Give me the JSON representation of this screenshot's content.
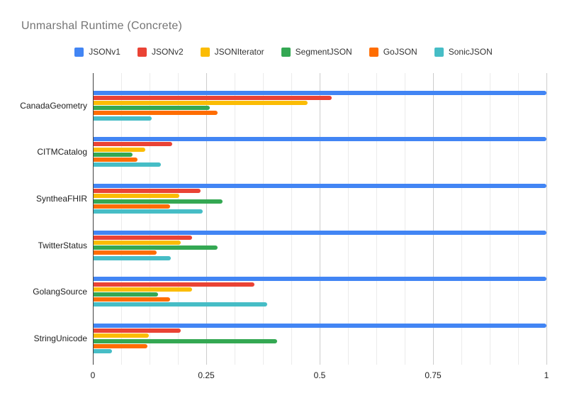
{
  "title": "Unmarshal Runtime (Concrete)",
  "chart_data": {
    "type": "bar",
    "orientation": "horizontal",
    "title": "Unmarshal Runtime (Concrete)",
    "xlabel": "",
    "ylabel": "",
    "xlim": [
      0,
      1
    ],
    "x_tick_labels": [
      "0",
      "0.25",
      "0.5",
      "0.75",
      "1"
    ],
    "x_ticks": [
      0,
      0.25,
      0.5,
      0.75,
      1
    ],
    "minor_grid_step": 0.0625,
    "grid": true,
    "legend_position": "top",
    "categories": [
      "CanadaGeometry",
      "CITMCatalog",
      "SyntheaFHIR",
      "TwitterStatus",
      "GolangSource",
      "StringUnicode"
    ],
    "series": [
      {
        "name": "JSONv1",
        "color": "#4285f4",
        "values": [
          1,
          1,
          1,
          1,
          1,
          1
        ]
      },
      {
        "name": "JSONv2",
        "color": "#ea4335",
        "values": [
          0.527,
          0.175,
          0.238,
          0.219,
          0.356,
          0.194
        ]
      },
      {
        "name": "JSONIterator",
        "color": "#fbbc04",
        "values": [
          0.473,
          0.115,
          0.19,
          0.194,
          0.219,
          0.123
        ]
      },
      {
        "name": "SegmentJSON",
        "color": "#34a853",
        "values": [
          0.258,
          0.088,
          0.286,
          0.275,
          0.143,
          0.406
        ]
      },
      {
        "name": "GoJSON",
        "color": "#ff6d01",
        "values": [
          0.275,
          0.098,
          0.17,
          0.141,
          0.17,
          0.12
        ]
      },
      {
        "name": "SonicJSON",
        "color": "#46bdc6",
        "values": [
          0.13,
          0.15,
          0.242,
          0.172,
          0.385,
          0.042
        ]
      }
    ]
  },
  "colors": {
    "title_text": "#757575",
    "axis_text": "#212121",
    "legend_text": "#333333",
    "zero_axis": "#424242",
    "major_grid": "#cccccc",
    "minor_grid": "#ebebeb",
    "background": "#ffffff"
  }
}
